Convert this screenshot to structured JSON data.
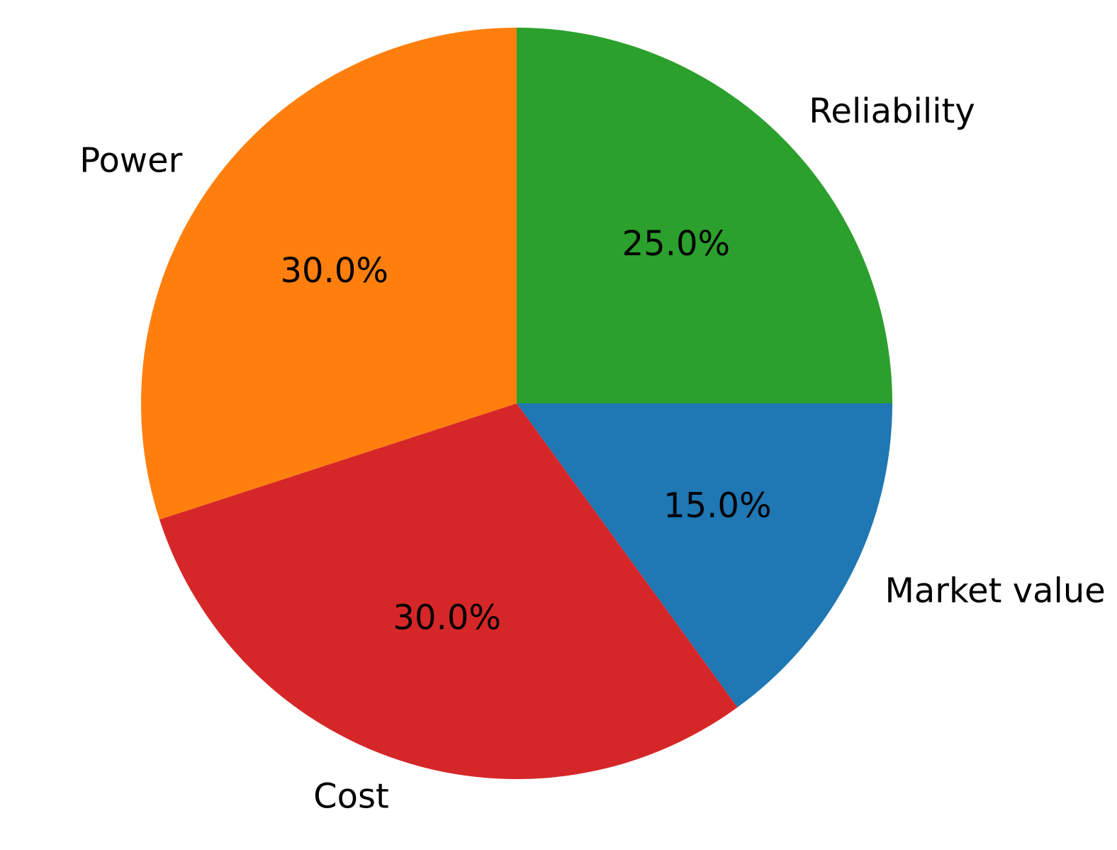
{
  "chart_data": {
    "type": "pie",
    "title": "",
    "categories": [
      "Market value",
      "Cost",
      "Power",
      "Reliability"
    ],
    "values": [
      15.0,
      30.0,
      30.0,
      25.0
    ],
    "percent_labels": [
      "15.0%",
      "30.0%",
      "30.0%",
      "25.0%"
    ],
    "colors": [
      "#1f77b4",
      "#d62728",
      "#ff7f0e",
      "#2ca02c"
    ],
    "start_angle_deg": 0,
    "direction": "clockwise",
    "legend": "none"
  }
}
